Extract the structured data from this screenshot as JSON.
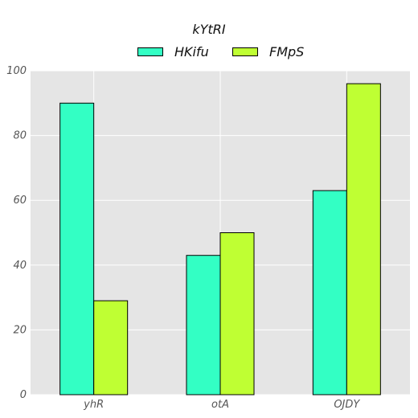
{
  "chart_data": {
    "type": "bar",
    "title": "",
    "xlabel": "",
    "ylabel": "",
    "legend_title": "kYtRI",
    "legend_position": "top-center",
    "categories": [
      "yhR",
      "otA",
      "OJDY"
    ],
    "series": [
      {
        "name": "HKifu",
        "values": [
          90,
          43,
          63
        ],
        "color": "#33ffc4"
      },
      {
        "name": "FMpS",
        "values": [
          29,
          50,
          96
        ],
        "color": "#bfff33"
      }
    ],
    "ylim": [
      0,
      100
    ],
    "yticks": [
      0,
      20,
      40,
      60,
      80,
      100
    ],
    "grid": true,
    "background": "#e5e5e5",
    "grid_color": "#ffffff"
  }
}
